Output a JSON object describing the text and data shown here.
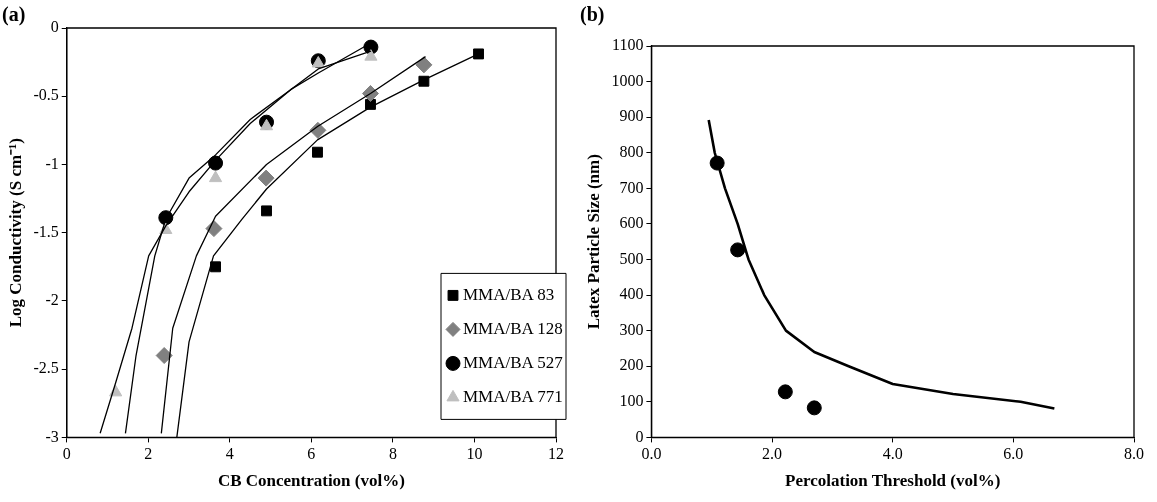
{
  "chart_data": [
    {
      "type": "scatter",
      "title": "(a)",
      "xlabel": "CB Concentration (vol%)",
      "ylabel": "Log Conductivity (S cm⁻¹)",
      "xlim": [
        0,
        12
      ],
      "xticks": [
        0,
        2,
        4,
        6,
        8,
        10,
        12
      ],
      "ylim": [
        -3,
        0
      ],
      "yticks": [
        -3,
        -2.5,
        -2,
        -1.5,
        -1,
        -0.5,
        0
      ],
      "grid": false,
      "legend": "bottom right",
      "series": [
        {
          "name": "MMA/BA 83",
          "marker": "square",
          "color": "#000000",
          "x": [
            3.65,
            4.9,
            6.15,
            7.45,
            8.76,
            10.1
          ],
          "values": [
            -1.75,
            -1.34,
            -0.91,
            -0.56,
            -0.39,
            -0.19
          ]
        },
        {
          "name": "MMA/BA 128",
          "marker": "diamond",
          "color": "#808080",
          "x": [
            2.39,
            3.61,
            4.89,
            6.16,
            7.45,
            8.76
          ],
          "values": [
            -2.4,
            -1.47,
            -1.1,
            -0.75,
            -0.48,
            -0.27
          ]
        },
        {
          "name": "MMA/BA 527",
          "marker": "circle",
          "color": "#000000",
          "x": [
            2.43,
            3.65,
            4.9,
            6.17,
            7.46
          ],
          "values": [
            -1.39,
            -0.99,
            -0.69,
            -0.24,
            -0.14
          ]
        },
        {
          "name": "MMA/BA 771",
          "marker": "triangle",
          "color": "#bfbfbf",
          "x": [
            1.2,
            2.43,
            3.65,
            4.9,
            6.17,
            7.46
          ],
          "values": [
            -2.67,
            -1.48,
            -1.1,
            -0.72,
            -0.26,
            -0.21
          ]
        },
        {
          "type": "line",
          "color": "#000000",
          "x": [
            0.82,
            1.2,
            1.6,
            2.01,
            2.43,
            3,
            3.65,
            4.5,
            5.5,
            6.17,
            7.46
          ],
          "values": [
            -2.97,
            -2.6,
            -2.2,
            -1.67,
            -1.45,
            -1.2,
            -0.97,
            -0.7,
            -0.45,
            -0.3,
            -0.17
          ]
        },
        {
          "type": "line",
          "color": "#000000",
          "x": [
            1.44,
            1.7,
            2.16,
            2.43,
            3,
            3.65,
            4.5,
            5.5,
            6.17,
            7.46
          ],
          "values": [
            -2.97,
            -2.4,
            -1.67,
            -1.4,
            -1.1,
            -0.93,
            -0.67,
            -0.45,
            -0.33,
            -0.11
          ]
        },
        {
          "type": "line",
          "color": "#000000",
          "x": [
            2.32,
            2.6,
            3.18,
            3.65,
            4.9,
            6.16,
            7.45,
            8.8
          ],
          "values": [
            -2.97,
            -2.2,
            -1.67,
            -1.38,
            -1.0,
            -0.72,
            -0.48,
            -0.21
          ]
        },
        {
          "type": "line",
          "color": "#000000",
          "x": [
            2.7,
            3.0,
            3.6,
            4.3,
            4.9,
            6.15,
            7.45,
            8.76,
            10.1
          ],
          "values": [
            -3.0,
            -2.3,
            -1.67,
            -1.4,
            -1.18,
            -0.82,
            -0.58,
            -0.38,
            -0.19
          ]
        }
      ]
    },
    {
      "type": "scatter",
      "title": "(b)",
      "xlabel": "Percolation Threshold (vol%)",
      "ylabel": "Latex Particle Size (nm)",
      "xlim": [
        0,
        8
      ],
      "xticks": [
        {
          "value": 0,
          "label": "0.0"
        },
        {
          "value": 2,
          "label": "2.0"
        },
        {
          "value": 4,
          "label": "4.0"
        },
        {
          "value": 6,
          "label": "6.0"
        },
        {
          "value": 8,
          "label": "8.0"
        }
      ],
      "ylim": [
        0,
        1100
      ],
      "yticks": [
        0,
        100,
        200,
        300,
        400,
        500,
        600,
        700,
        800,
        900,
        1000,
        1100
      ],
      "grid": false,
      "legend": false,
      "series": [
        {
          "marker": "circle",
          "color": "#000000",
          "x": [
            1.09,
            1.43,
            2.22,
            2.7
          ],
          "values": [
            771,
            527,
            128,
            83
          ]
        },
        {
          "type": "line",
          "color": "#000000",
          "x": [
            0.95,
            1.05,
            1.22,
            1.43,
            1.61,
            1.87,
            2.23,
            2.7,
            3.27,
            4.0,
            5.0,
            6.12,
            6.68
          ],
          "values": [
            892,
            800,
            700,
            600,
            500,
            400,
            300,
            240,
            200,
            150,
            122,
            100,
            81
          ]
        }
      ]
    }
  ]
}
